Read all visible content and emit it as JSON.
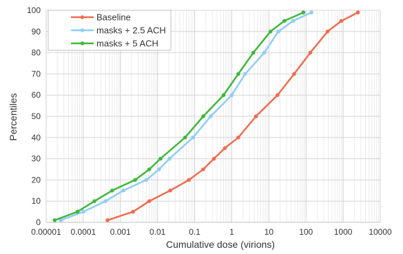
{
  "chart_data": {
    "type": "line",
    "title": "",
    "xlabel": "Cumulative dose (virions)",
    "ylabel": "Percentiles",
    "x_scale": "log",
    "xlim": [
      1e-05,
      10000
    ],
    "ylim": [
      0,
      100
    ],
    "x_tick_labels": [
      "0.00001",
      "0.0001",
      "0.001",
      "0.01",
      "0.1",
      "1",
      "10",
      "100",
      "1000",
      "10000"
    ],
    "x_tick_values": [
      1e-05,
      0.0001,
      0.001,
      0.01,
      0.1,
      1,
      10,
      100,
      1000,
      10000
    ],
    "y_ticks": [
      0,
      10,
      20,
      30,
      40,
      50,
      60,
      70,
      80,
      90,
      100
    ],
    "grid": "major and minor",
    "legend_position": "top-left",
    "series": [
      {
        "name": "Baseline",
        "color": "#F26B4E",
        "points": [
          [
            0.00045,
            1
          ],
          [
            0.0022,
            5
          ],
          [
            0.006,
            10
          ],
          [
            0.022,
            15
          ],
          [
            0.07,
            20
          ],
          [
            0.17,
            25
          ],
          [
            0.33,
            30
          ],
          [
            0.65,
            35
          ],
          [
            1.5,
            40
          ],
          [
            4.5,
            50
          ],
          [
            17,
            60
          ],
          [
            48,
            70
          ],
          [
            130,
            80
          ],
          [
            380,
            90
          ],
          [
            900,
            95
          ],
          [
            2500,
            99
          ]
        ]
      },
      {
        "name": "masks + 2.5 ACH",
        "color": "#8ECDF5",
        "points": [
          [
            2.5e-05,
            1
          ],
          [
            0.0001,
            5
          ],
          [
            0.0004,
            10
          ],
          [
            0.0012,
            15
          ],
          [
            0.005,
            20
          ],
          [
            0.011,
            25
          ],
          [
            0.021,
            30
          ],
          [
            0.09,
            40
          ],
          [
            0.27,
            50
          ],
          [
            1,
            60
          ],
          [
            2.3,
            70
          ],
          [
            7.5,
            80
          ],
          [
            18,
            90
          ],
          [
            45,
            95
          ],
          [
            140,
            99
          ]
        ]
      },
      {
        "name": "masks + 5 ACH",
        "color": "#3DB83A",
        "points": [
          [
            1.7e-05,
            1
          ],
          [
            7e-05,
            5
          ],
          [
            0.0002,
            10
          ],
          [
            0.0006,
            15
          ],
          [
            0.0025,
            20
          ],
          [
            0.006,
            25
          ],
          [
            0.012,
            30
          ],
          [
            0.055,
            40
          ],
          [
            0.17,
            50
          ],
          [
            0.6,
            60
          ],
          [
            1.5,
            70
          ],
          [
            3.8,
            80
          ],
          [
            11,
            90
          ],
          [
            26,
            95
          ],
          [
            85,
            99
          ]
        ]
      }
    ]
  }
}
